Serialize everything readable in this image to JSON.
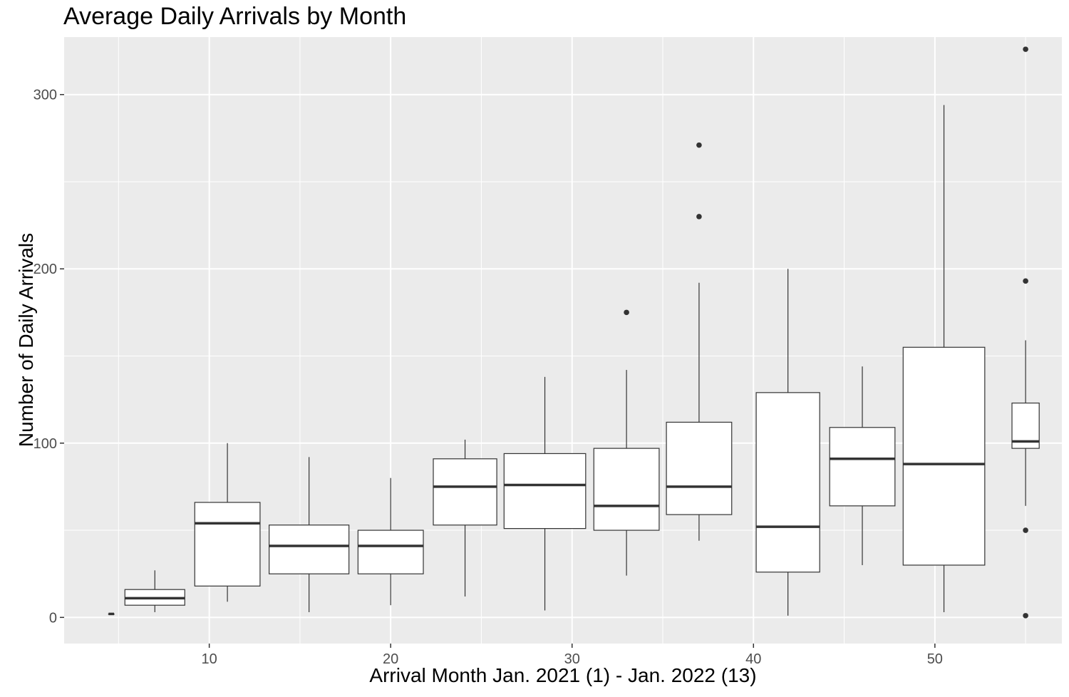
{
  "chart_data": {
    "type": "box",
    "title": "Average Daily Arrivals by Month",
    "xlabel": "Arrival Month Jan. 2021 (1) - Jan. 2022 (13)",
    "ylabel": "Number of Daily Arrivals",
    "xlim": [
      2,
      57
    ],
    "ylim": [
      -15,
      333
    ],
    "x_ticks": [
      10,
      20,
      30,
      40,
      50
    ],
    "y_ticks": [
      0,
      100,
      200,
      300
    ],
    "grid": true,
    "background": "#ebebeb",
    "boxes": [
      {
        "x": 4.6,
        "width": 0.3,
        "lower_whisker": 2,
        "q1": 2,
        "median": 2,
        "q3": 2,
        "upper_whisker": 2,
        "outliers": []
      },
      {
        "x": 7.0,
        "width": 3.3,
        "lower_whisker": 3,
        "q1": 7,
        "median": 11,
        "q3": 16,
        "upper_whisker": 27,
        "outliers": []
      },
      {
        "x": 11.0,
        "width": 3.6,
        "lower_whisker": 9,
        "q1": 18,
        "median": 54,
        "q3": 66,
        "upper_whisker": 100,
        "outliers": []
      },
      {
        "x": 15.5,
        "width": 4.4,
        "lower_whisker": 3,
        "q1": 25,
        "median": 41,
        "q3": 53,
        "upper_whisker": 92,
        "outliers": []
      },
      {
        "x": 20.0,
        "width": 3.6,
        "lower_whisker": 7,
        "q1": 25,
        "median": 41,
        "q3": 50,
        "upper_whisker": 80,
        "outliers": []
      },
      {
        "x": 24.1,
        "width": 3.5,
        "lower_whisker": 12,
        "q1": 53,
        "median": 75,
        "q3": 91,
        "upper_whisker": 102,
        "outliers": []
      },
      {
        "x": 28.5,
        "width": 4.5,
        "lower_whisker": 4,
        "q1": 51,
        "median": 76,
        "q3": 94,
        "upper_whisker": 138,
        "outliers": []
      },
      {
        "x": 33.0,
        "width": 3.6,
        "lower_whisker": 24,
        "q1": 50,
        "median": 64,
        "q3": 97,
        "upper_whisker": 142,
        "outliers": [
          175
        ]
      },
      {
        "x": 37.0,
        "width": 3.6,
        "lower_whisker": 44,
        "q1": 59,
        "median": 75,
        "q3": 112,
        "upper_whisker": 192,
        "outliers": [
          230,
          271
        ]
      },
      {
        "x": 41.9,
        "width": 3.5,
        "lower_whisker": 1,
        "q1": 26,
        "median": 52,
        "q3": 129,
        "upper_whisker": 200,
        "outliers": []
      },
      {
        "x": 46.0,
        "width": 3.6,
        "lower_whisker": 30,
        "q1": 64,
        "median": 91,
        "q3": 109,
        "upper_whisker": 144,
        "outliers": []
      },
      {
        "x": 50.5,
        "width": 4.5,
        "lower_whisker": 3,
        "q1": 30,
        "median": 88,
        "q3": 155,
        "upper_whisker": 294,
        "outliers": []
      },
      {
        "x": 55.0,
        "width": 1.5,
        "lower_whisker": 64,
        "q1": 97,
        "median": 101,
        "q3": 123,
        "upper_whisker": 159,
        "outliers": [
          1,
          50,
          193,
          326
        ]
      }
    ]
  }
}
